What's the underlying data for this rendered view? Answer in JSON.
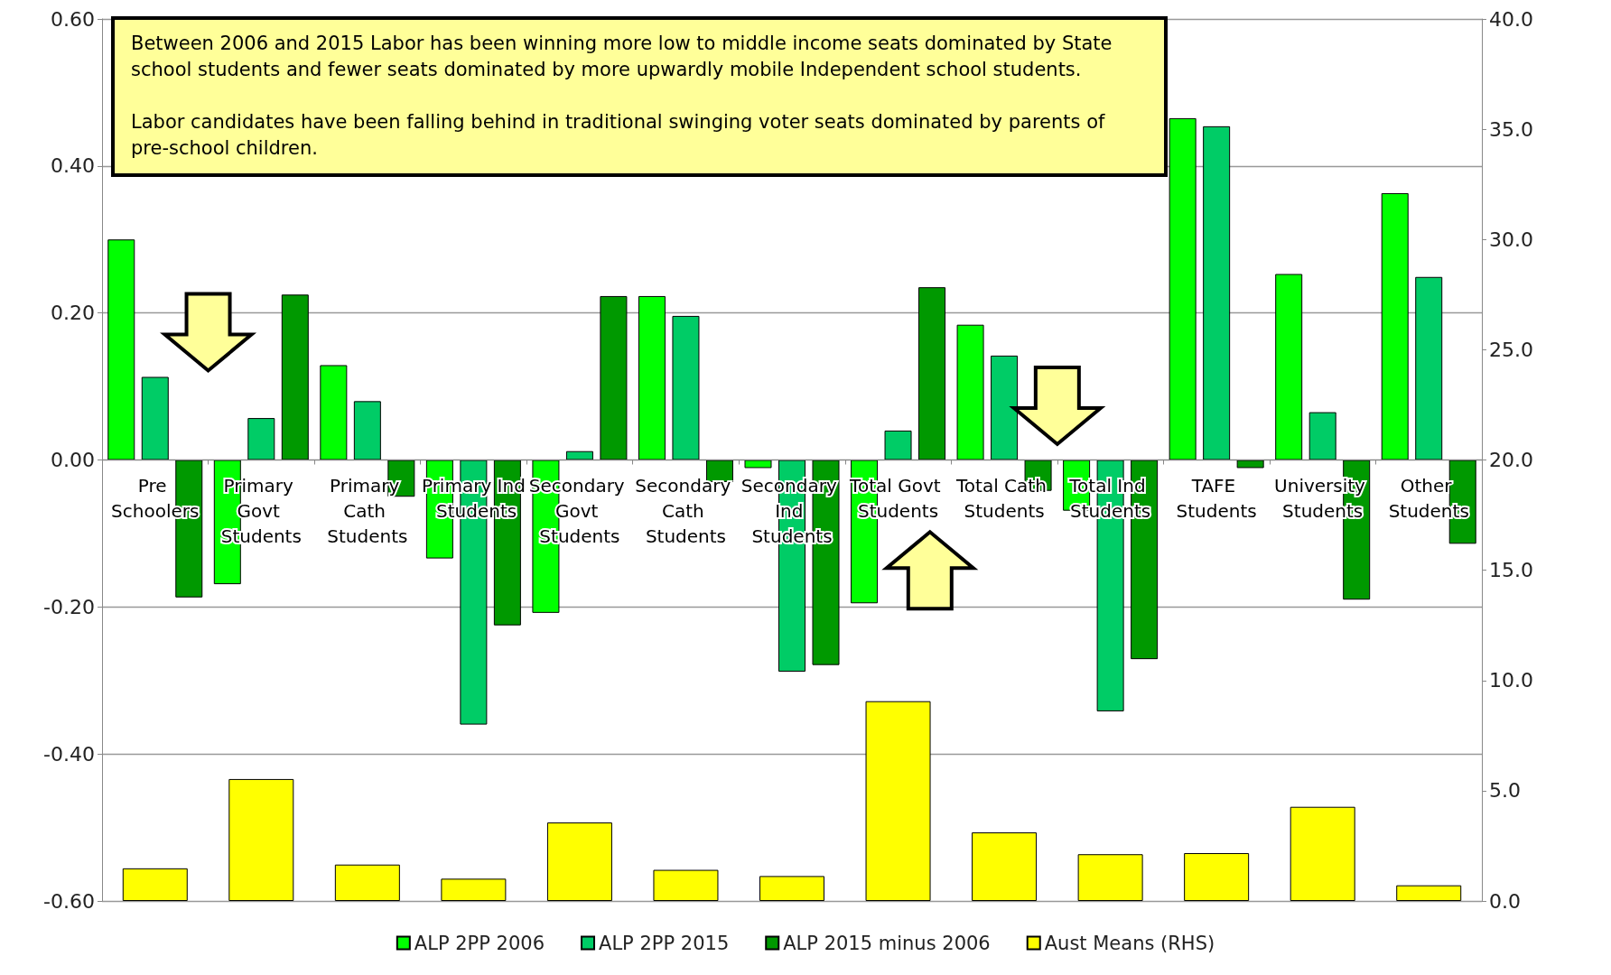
{
  "chart_data": {
    "type": "bar",
    "annotations": [
      "Between 2006 and 2015 Labor has been winning more low to middle income seats dominated by State school students and fewer seats dominated by more upwardly mobile Independent school students.",
      "Labor candidates have been falling behind in traditional swinging voter seats dominated by parents of pre-school children."
    ],
    "categories": [
      "Pre Schoolers",
      "Primary Govt Students",
      "Primary Cath Students",
      "Primary Ind Students",
      "Secondary Govt Students",
      "Secondary Cath Students",
      "Secondary Ind Students",
      "Total Govt Students",
      "Total Cath Students",
      "Total Ind Students",
      "TAFE Students",
      "University Students",
      "Other Students"
    ],
    "series": [
      {
        "name": "ALP 2PP 2006",
        "color": "#00ff00",
        "values": [
          0.3,
          -0.169,
          0.129,
          -0.134,
          -0.208,
          0.223,
          -0.011,
          -0.195,
          0.184,
          -0.069,
          0.465,
          0.253,
          0.363
        ]
      },
      {
        "name": "ALP 2PP 2015",
        "color": "#00cc66",
        "values": [
          0.113,
          0.057,
          0.08,
          -0.36,
          0.012,
          0.196,
          -0.288,
          0.04,
          0.142,
          -0.342,
          0.454,
          0.065,
          0.249
        ]
      },
      {
        "name": "ALP 2015 minus 2006",
        "color": "#009900",
        "values": [
          -0.187,
          0.225,
          -0.05,
          -0.225,
          0.223,
          -0.03,
          -0.279,
          0.235,
          -0.042,
          -0.271,
          -0.011,
          -0.19,
          -0.114
        ]
      },
      {
        "name": "Aust Means (RHS)",
        "color": "#ffff00",
        "axis": "y2",
        "values": [
          1.48,
          5.53,
          1.65,
          1.01,
          3.56,
          1.41,
          1.13,
          9.06,
          3.11,
          2.12,
          2.17,
          4.27,
          0.71
        ]
      }
    ],
    "ylim": [
      -0.6,
      0.6
    ],
    "yticks": [
      {
        "value": -0.6,
        "label": "-0.60"
      },
      {
        "value": -0.4,
        "label": "-0.40"
      },
      {
        "value": -0.2,
        "label": "-0.20"
      },
      {
        "value": 0,
        "label": "0.00"
      },
      {
        "value": 0.2,
        "label": "0.20"
      },
      {
        "value": 0.4,
        "label": "0.40"
      },
      {
        "value": 0.6,
        "label": "0.60"
      }
    ],
    "y2lim": [
      0,
      40
    ],
    "y2ticks": [
      {
        "value": 0,
        "label": "0.0"
      },
      {
        "value": 5,
        "label": "5.0"
      },
      {
        "value": 10,
        "label": "10.0"
      },
      {
        "value": 15,
        "label": "15.0"
      },
      {
        "value": 20,
        "label": "20.0"
      },
      {
        "value": 25,
        "label": "25.0"
      },
      {
        "value": 30,
        "label": "30.0"
      },
      {
        "value": 35,
        "label": "35.0"
      },
      {
        "value": 40,
        "label": "40.0"
      }
    ],
    "grid": "y",
    "legend": "bottom"
  }
}
